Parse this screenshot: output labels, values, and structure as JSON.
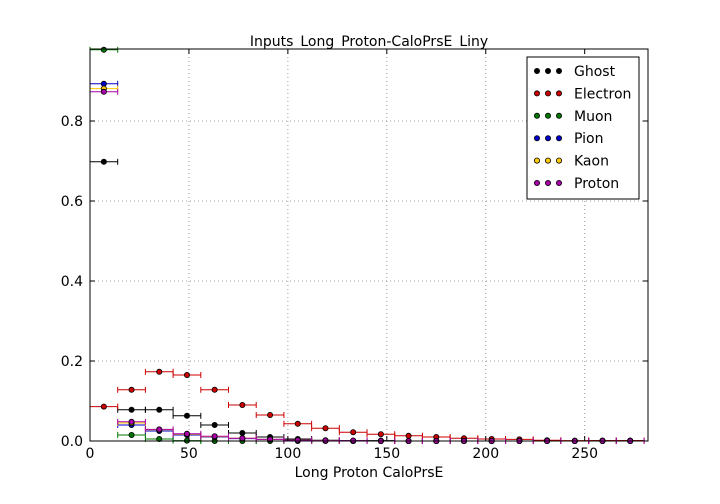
{
  "chart_data": {
    "type": "scatter",
    "style": "histogram points with horizontal bin-width error bars",
    "title": "Inputs_Long_Proton-CaloPrsE_Liny",
    "xlabel": "Long Proton CaloPrsE",
    "ylabel": "",
    "xlim": [
      0,
      282
    ],
    "ylim": [
      0,
      0.98
    ],
    "xticks": [
      0,
      50,
      100,
      150,
      200,
      250
    ],
    "yticks": [
      0.0,
      0.2,
      0.4,
      0.6,
      0.8
    ],
    "xtick_labels": [
      "0",
      "50",
      "100",
      "150",
      "200",
      "250"
    ],
    "ytick_labels": [
      "0.0",
      "0.2",
      "0.4",
      "0.6",
      "0.8"
    ],
    "grid": true,
    "legend_position": "top-right",
    "bin_half_width": 7,
    "x": [
      7,
      21,
      35,
      49,
      63,
      77,
      91,
      105,
      119,
      133,
      147,
      161,
      175,
      189,
      203,
      217,
      231,
      245,
      259,
      273
    ],
    "series": [
      {
        "name": "Ghost",
        "color": "#000000",
        "values": [
          0.698,
          0.078,
          0.078,
          0.063,
          0.04,
          0.02,
          0.01,
          0.005,
          0.002,
          0.001,
          0.001,
          0,
          0,
          0,
          0,
          0,
          0.001,
          0,
          0.001,
          0.001
        ]
      },
      {
        "name": "Electron",
        "color": "#cc0000",
        "values": [
          0.086,
          0.128,
          0.173,
          0.165,
          0.128,
          0.09,
          0.065,
          0.043,
          0.032,
          0.022,
          0.017,
          0.013,
          0.01,
          0.007,
          0.005,
          0.004,
          0.002,
          0.001,
          0.001,
          0.001
        ]
      },
      {
        "name": "Muon",
        "color": "#007700",
        "values": [
          0.978,
          0.015,
          0.005,
          0.001,
          0,
          0,
          0,
          0,
          0,
          0,
          0,
          0,
          0,
          0,
          0,
          0,
          0,
          0,
          0,
          0
        ]
      },
      {
        "name": "Pion",
        "color": "#0000cc",
        "values": [
          0.893,
          0.04,
          0.025,
          0.015,
          0.01,
          0.006,
          0.004,
          0.002,
          0.001,
          0,
          0,
          0,
          0,
          0,
          0,
          0,
          0,
          0,
          0,
          0
        ]
      },
      {
        "name": "Kaon",
        "color": "#ffcc00",
        "values": [
          0.881,
          0.045,
          0.028,
          0.017,
          0.011,
          0.007,
          0.004,
          0.002,
          0.001,
          0,
          0,
          0,
          0,
          0,
          0,
          0,
          0,
          0,
          0,
          0
        ]
      },
      {
        "name": "Proton",
        "color": "#aa00aa",
        "values": [
          0.873,
          0.048,
          0.029,
          0.018,
          0.012,
          0.007,
          0.004,
          0.002,
          0.001,
          0.001,
          0,
          0,
          0,
          0,
          0,
          0,
          0,
          0,
          0,
          0
        ]
      }
    ]
  }
}
